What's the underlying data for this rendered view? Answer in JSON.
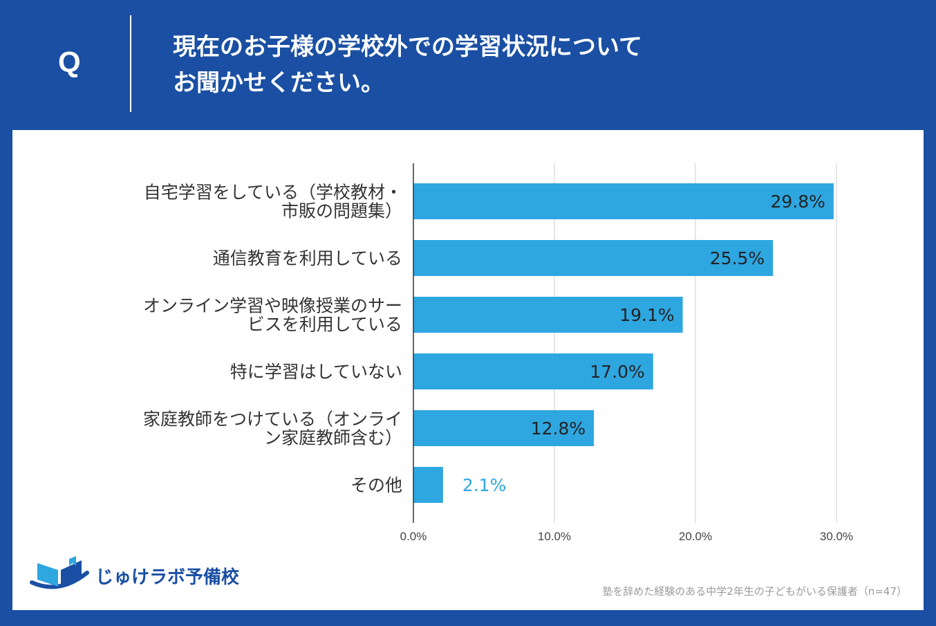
{
  "question": {
    "mark": "Q",
    "line1": "現在のお子様の学校外での学習状況について",
    "line2": "お聞かせください。"
  },
  "colors": {
    "background": "#1a4fa3",
    "bar": "#2ea6e0",
    "panel": "#ffffff"
  },
  "logo": {
    "text": "じゅけラボ予備校",
    "icon": "open-book-icon"
  },
  "footnote": "塾を辞めた経験のある中学2年生の子どもがいる保護者（n=47）",
  "chart_data": {
    "type": "bar",
    "orientation": "horizontal",
    "categories": [
      [
        "自宅学習をしている（学校教材・",
        "市販の問題集）"
      ],
      [
        "通信教育を利用している"
      ],
      [
        "オンライン学習や映像授業のサー",
        "ビスを利用している"
      ],
      [
        "特に学習はしていない"
      ],
      [
        "家庭教師をつけている（オンライ",
        "ン家庭教師含む）"
      ],
      [
        "その他"
      ]
    ],
    "values": [
      29.8,
      25.5,
      19.1,
      17.0,
      12.8,
      2.1
    ],
    "value_labels": [
      "29.8%",
      "25.5%",
      "19.1%",
      "17.0%",
      "12.8%",
      "2.1%"
    ],
    "xlim": [
      0,
      30
    ],
    "xticks": [
      0,
      10,
      20,
      30
    ],
    "xtick_labels": [
      "0.0%",
      "10.0%",
      "20.0%",
      "30.0%"
    ],
    "grid": true
  }
}
